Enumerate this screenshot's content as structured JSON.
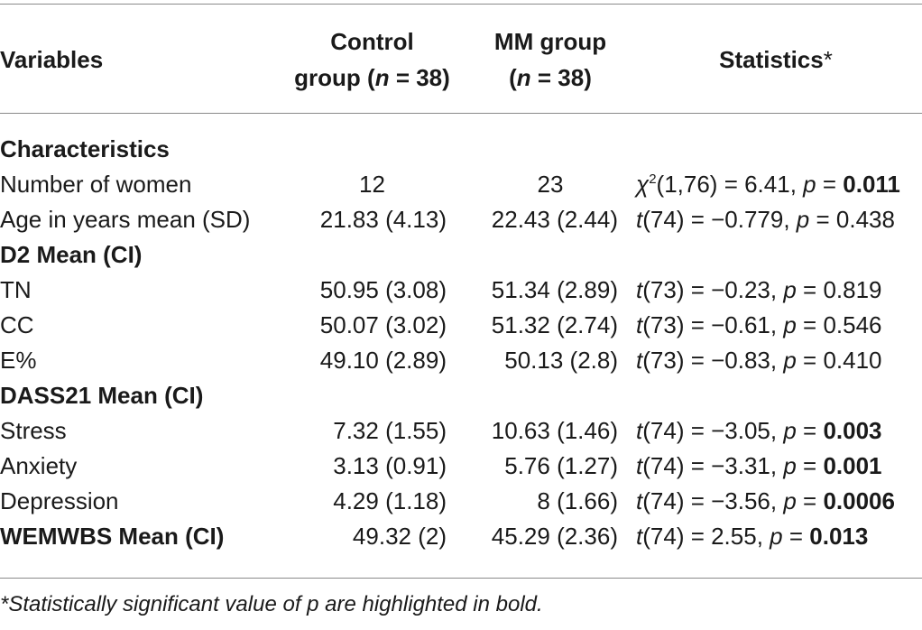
{
  "header": {
    "variables": "Variables",
    "control_line1": "Control",
    "control_line2_pre": "group (",
    "control_n": "n",
    "control_line2_post": " = 38)",
    "mm_line1": "MM group",
    "mm_line2_pre": "(",
    "mm_n": "n",
    "mm_line2_post": " = 38)",
    "statistics": "Statistics",
    "statistics_mark": "*"
  },
  "rows": [
    {
      "section": "Characteristics"
    },
    {
      "label": "Number of women",
      "control": "12",
      "mm": "23",
      "stat_sym": "χ",
      "stat_sup": "2",
      "stat_text": "(1,76) = 6.41, ",
      "p": "p",
      "eq": " = ",
      "p_value": "0.011",
      "bold": true
    },
    {
      "label": "Age in years mean (SD)",
      "control": "21.83 (4.13)",
      "mm": "22.43 (2.44)",
      "stat_sym": "t",
      "stat_text": "(74) = −0.779, ",
      "p": "p",
      "eq": " = ",
      "p_value": "0.438",
      "bold": false
    },
    {
      "section": "D2 Mean (CI)"
    },
    {
      "label": "TN",
      "control": "50.95 (3.08)",
      "mm": "51.34 (2.89)",
      "stat_sym": "t",
      "stat_text": "(73) = −0.23, ",
      "p": "p",
      "eq": " = ",
      "p_value": "0.819",
      "bold": false
    },
    {
      "label": "CC",
      "control": "50.07 (3.02)",
      "mm": "51.32 (2.74)",
      "stat_sym": "t",
      "stat_text": "(73) = −0.61, ",
      "p": "p",
      "eq": " = ",
      "p_value": "0.546",
      "bold": false
    },
    {
      "label": "E%",
      "control": "49.10 (2.89)",
      "mm": "50.13 (2.8)",
      "stat_sym": "t",
      "stat_text": "(73) = −0.83, ",
      "p": "p",
      "eq": " = ",
      "p_value": "0.410",
      "bold": false
    },
    {
      "section": "DASS21 Mean (CI)"
    },
    {
      "label": "Stress",
      "control": "7.32 (1.55)",
      "mm": "10.63 (1.46)",
      "stat_sym": "t",
      "stat_text": "(74) = −3.05, ",
      "p": "p",
      "eq": " = ",
      "p_value": "0.003",
      "bold": true
    },
    {
      "label": "Anxiety",
      "control": "3.13 (0.91)",
      "mm": "5.76 (1.27)",
      "stat_sym": "t",
      "stat_text": "(74) = −3.31, ",
      "p": "p",
      "eq": " = ",
      "p_value": "0.001",
      "bold": true
    },
    {
      "label": "Depression",
      "control": "4.29 (1.18)",
      "mm": "8 (1.66)",
      "stat_sym": "t",
      "stat_text": "(74) = −3.56, ",
      "p": "p",
      "eq": " = ",
      "p_value": "0.0006",
      "bold": true
    },
    {
      "section": "WEMWBS Mean (CI)",
      "control": "49.32 (2)",
      "mm": "45.29 (2.36)",
      "stat_sym": "t",
      "stat_text": "(74) = 2.55, ",
      "p": "p",
      "eq": " = ",
      "p_value": "0.013",
      "bold": true
    }
  ],
  "footnote": "*Statistically significant value of p are highlighted in bold."
}
